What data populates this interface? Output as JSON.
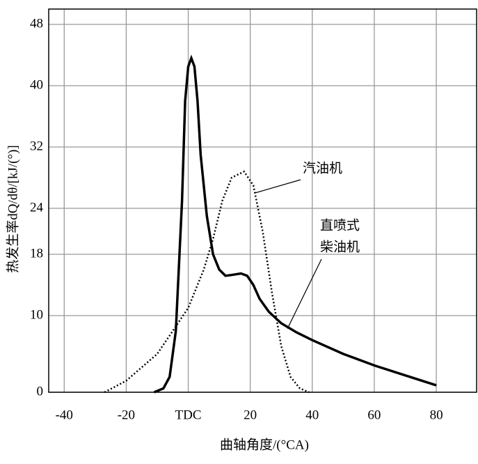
{
  "chart_data": {
    "type": "line",
    "x_label": "曲轴角度/(°CA)",
    "y_label": "热发生率dQ/dθ/[kJ/(°)]",
    "xlim": [
      -45,
      93
    ],
    "ylim": [
      0,
      50
    ],
    "xticks": [
      -40,
      -20,
      {
        "value": 0,
        "label": "TDC"
      },
      20,
      40,
      60,
      80
    ],
    "yticks": [
      0,
      10,
      18,
      24,
      32,
      40,
      48
    ],
    "grid": true,
    "series": [
      {
        "name": [
          "汽油机"
        ],
        "color": "#000000",
        "style": "dotted",
        "x": [
          -27,
          -20,
          -10,
          -5,
          0,
          5,
          8,
          11,
          14,
          18,
          21,
          24,
          27,
          30,
          33,
          36,
          39
        ],
        "values": [
          0,
          1.5,
          5,
          8,
          11,
          16,
          20,
          25,
          28,
          28.8,
          27,
          21,
          13,
          6,
          2,
          0.5,
          0
        ]
      },
      {
        "name": [
          "直喷式",
          "柴油机"
        ],
        "color": "#000000",
        "style": "solid",
        "x": [
          -11,
          -8,
          -6,
          -4,
          -2,
          -1,
          0,
          1,
          2,
          3,
          4,
          6,
          8,
          10,
          12,
          14,
          17,
          19,
          21,
          23,
          26,
          30,
          35,
          40,
          50,
          60,
          70,
          80
        ],
        "values": [
          0,
          0.5,
          2,
          8,
          25,
          38,
          42.5,
          43.6,
          42.5,
          38,
          31,
          23,
          18,
          16,
          15.2,
          15.3,
          15.5,
          15.2,
          14,
          12.2,
          10.5,
          9,
          7.8,
          6.8,
          5,
          3.5,
          2.2,
          0.9
        ]
      }
    ]
  }
}
